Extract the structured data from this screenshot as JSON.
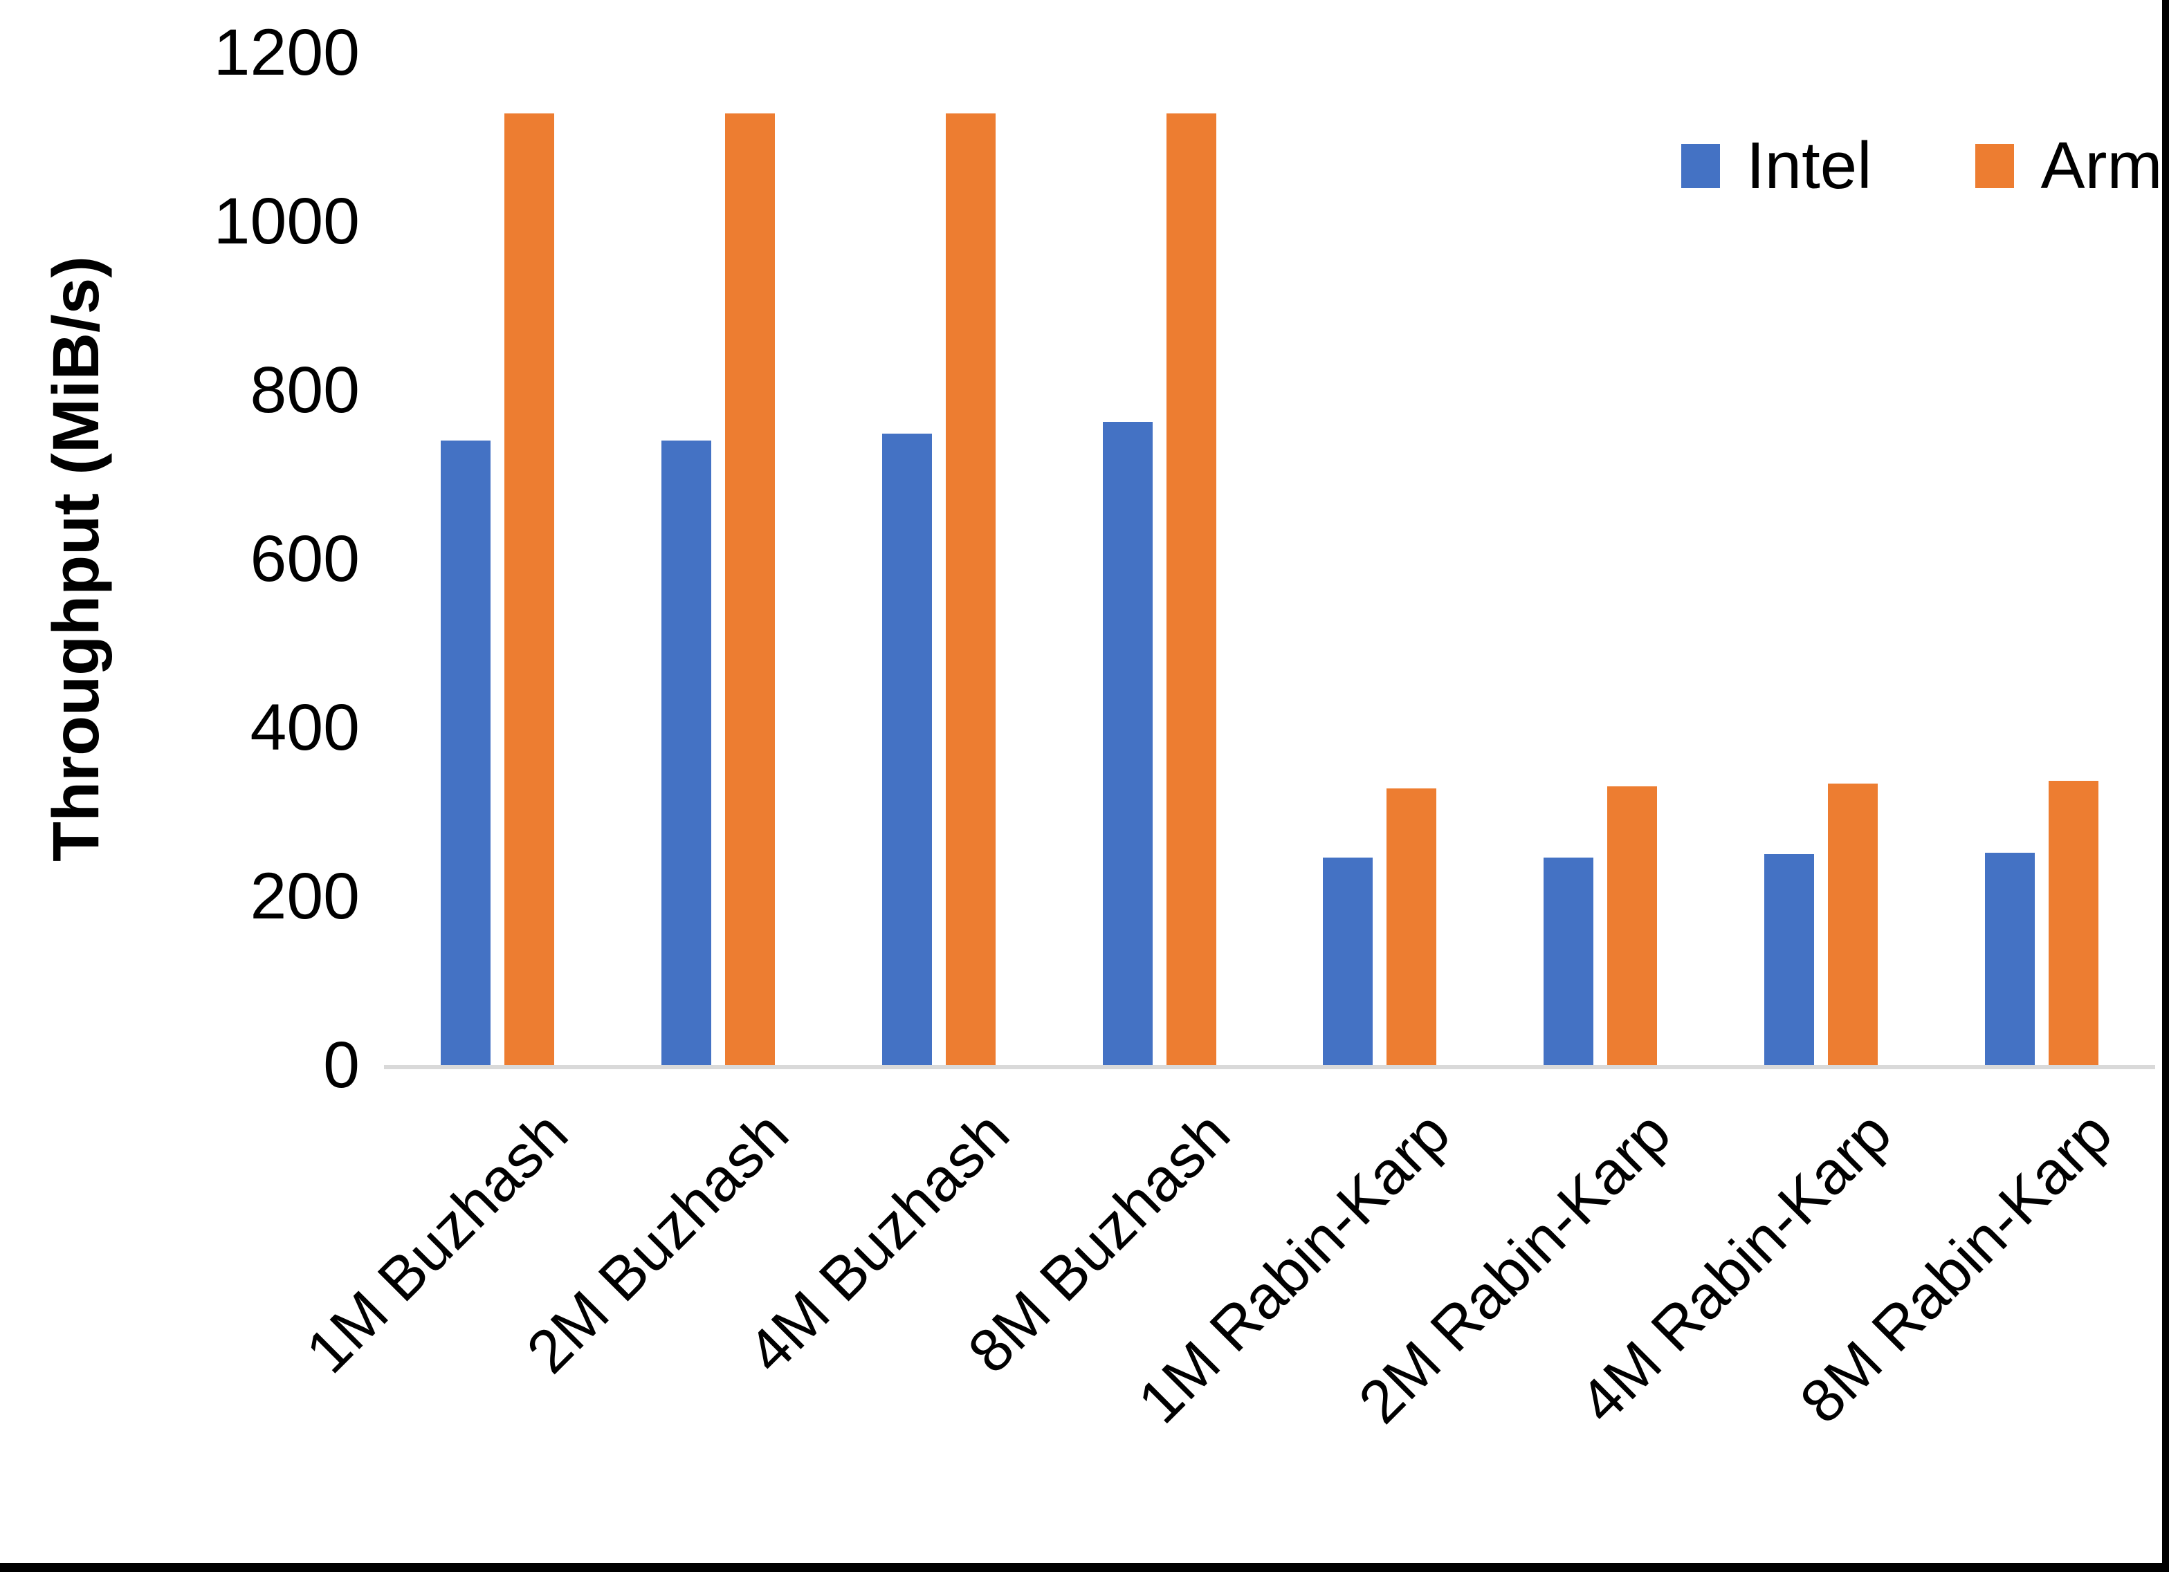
{
  "chart_data": {
    "type": "bar",
    "title": "",
    "xlabel": "",
    "ylabel": "Throughput (MiB/s)",
    "ylim": [
      0,
      1200
    ],
    "yticks": [
      0,
      200,
      400,
      600,
      800,
      1000,
      1200
    ],
    "grid": false,
    "legend_position": "top-right",
    "categories": [
      "1M Buzhash",
      "2M Buzhash",
      "4M Buzhash",
      "8M Buzhash",
      "1M Rabin-Karp",
      "2M Rabin-Karp",
      "4M Rabin-Karp",
      "8M Rabin-Karp"
    ],
    "series": [
      {
        "name": "Intel",
        "color": "#4472C4",
        "values": [
          740,
          740,
          748,
          762,
          246,
          246,
          250,
          252
        ]
      },
      {
        "name": "Arm",
        "color": "#ED7D31",
        "values": [
          1128,
          1128,
          1128,
          1128,
          328,
          330,
          334,
          337
        ]
      }
    ],
    "axis_line_color": "#D9D9D9",
    "text_color": "#000000"
  }
}
